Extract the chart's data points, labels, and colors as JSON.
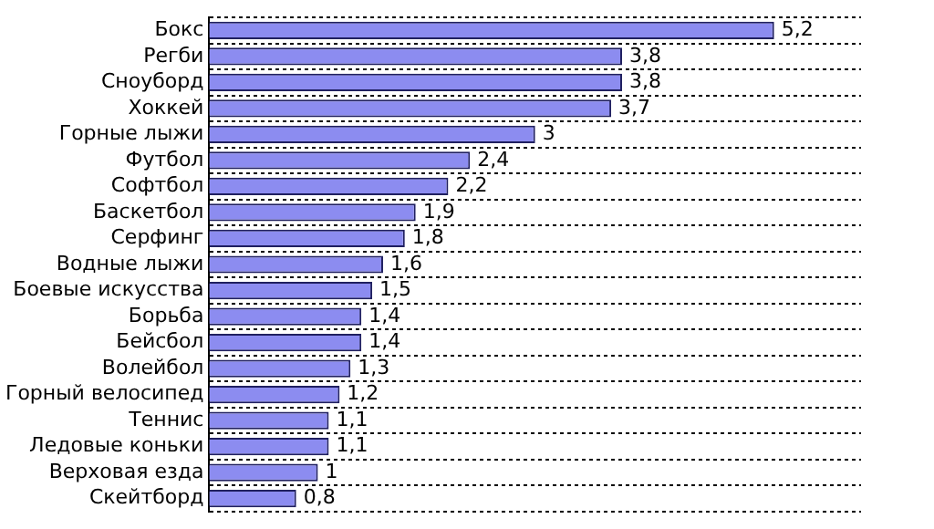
{
  "chart_data": {
    "type": "bar",
    "orientation": "horizontal",
    "grid": "y",
    "color": "#8c8cf0",
    "categories": [
      "Бокс",
      "Регби",
      "Сноуборд",
      "Хоккей",
      "Горные лыжи",
      "Футбол",
      "Софтбол",
      "Баскетбол",
      "Серфинг",
      "Водные лыжи",
      "Боевые искусства",
      "Борьба",
      "Бейсбол",
      "Волейбол",
      "Горный велосипед",
      "Теннис",
      "Ледовые коньки",
      "Верховая езда",
      "Скейтборд"
    ],
    "values": [
      5.2,
      3.8,
      3.8,
      3.7,
      3,
      2.4,
      2.2,
      1.9,
      1.8,
      1.6,
      1.5,
      1.4,
      1.4,
      1.3,
      1.2,
      1.1,
      1.1,
      1,
      0.8
    ],
    "value_labels": [
      "5,2",
      "3,8",
      "3,8",
      "3,7",
      "3",
      "2,4",
      "2,2",
      "1,9",
      "1,8",
      "1,6",
      "1,5",
      "1,4",
      "1,4",
      "1,3",
      "1,2",
      "1,1",
      "1,1",
      "1",
      "0,8"
    ]
  }
}
